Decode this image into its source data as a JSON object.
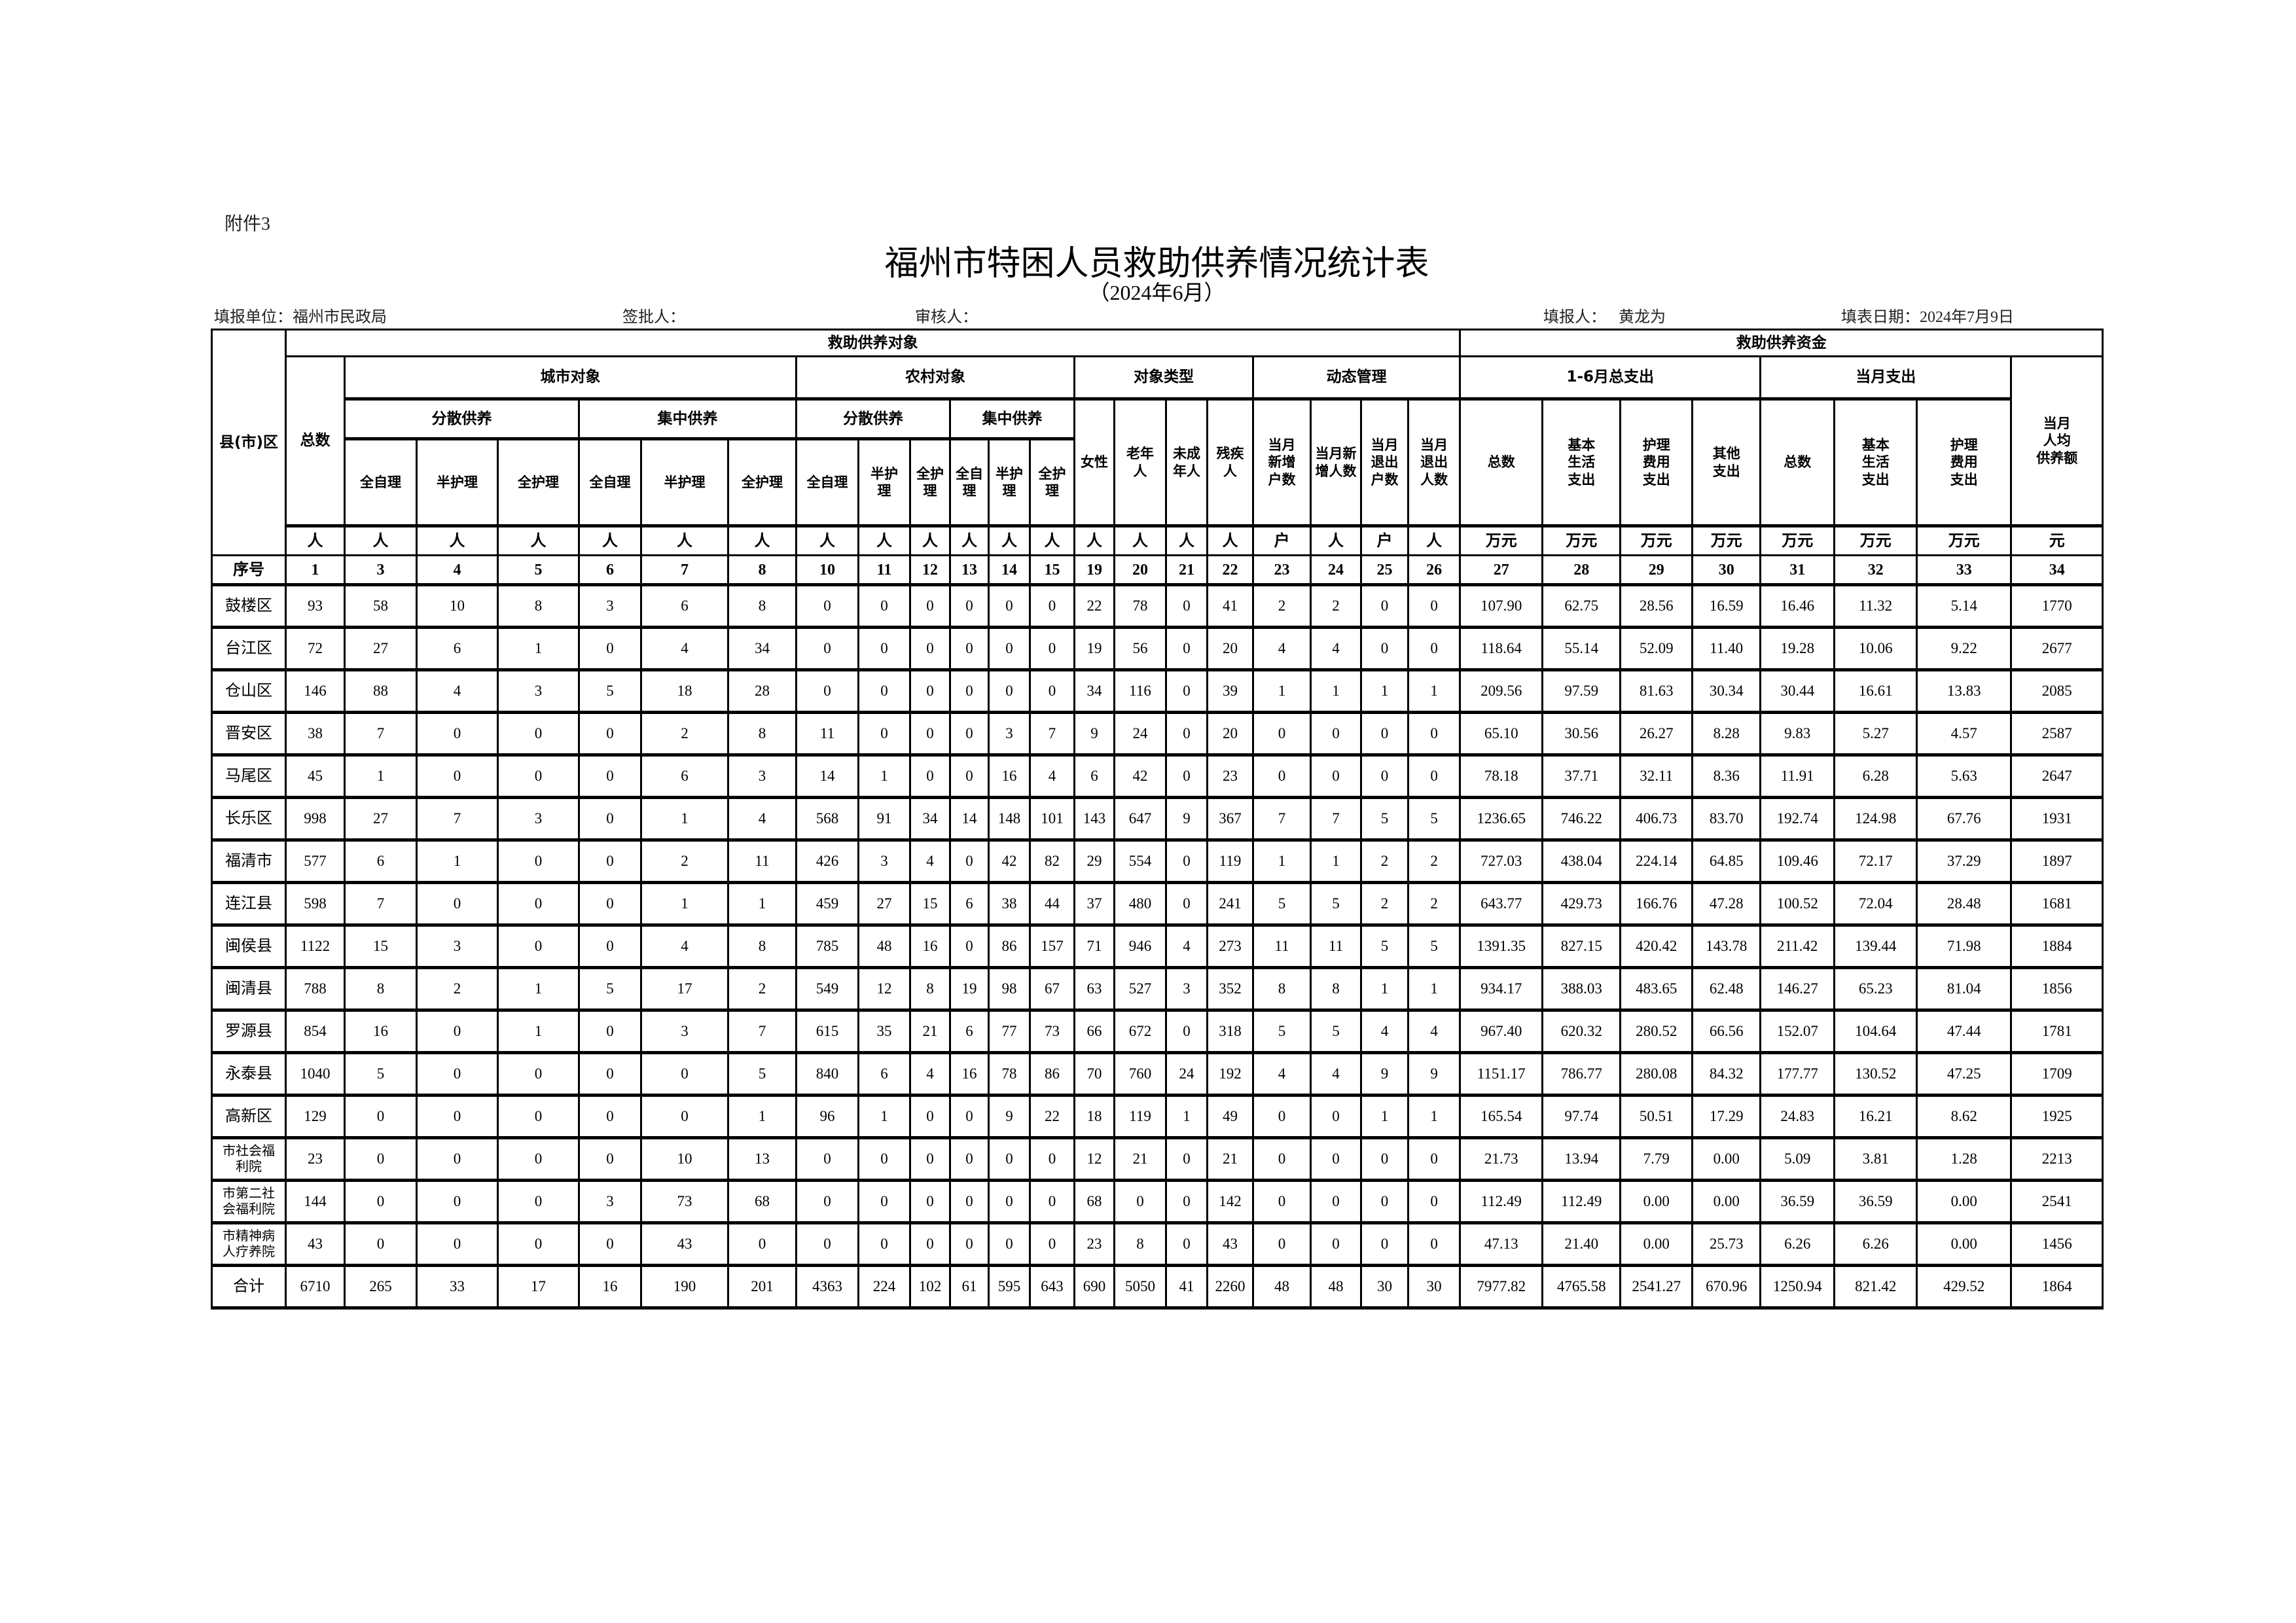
{
  "attachment_label": "附件3",
  "title": "福州市特困人员救助供养情况统计表",
  "subtitle": "（2024年6月）",
  "info": {
    "unit": "填报单位：福州市民政局",
    "approver": "签批人：",
    "reviewer": "审核人：",
    "filler_label": "填报人：",
    "filler_name": "黄龙为",
    "date": "填表日期：2024年7月9日"
  },
  "header": {
    "region": "县(市)区",
    "objects": "救助供养对象",
    "funds": "救助供养资金",
    "total": "总数",
    "urban": "城市对象",
    "rural": "农村对象",
    "type": "对象类型",
    "dynamic": "动态管理",
    "spend_1_6": "1-6月总支出",
    "spend_month": "当月支出",
    "per_capita": "当月\n人均\n供养额",
    "dispersed": "分散供养",
    "centralized": "集中供养",
    "female": "女性",
    "elderly": "老年\n人",
    "minor": "未成\n年人",
    "disabled": "残疾\n人",
    "new_households": "当月\n新增\n户数",
    "new_persons": "当月新\n增人数",
    "exit_households": "当月\n退出\n户数",
    "exit_persons": "当月\n退出\n人数",
    "f_total": "总数",
    "f_basic": "基本\n生活\n支出",
    "f_care": "护理\n费用\n支出",
    "f_other": "其他\n支出",
    "m_total": "总数",
    "m_basic": "基本\n生活\n支出",
    "m_care": "护理\n费用\n支出",
    "leaf": [
      "全自理",
      "半护理",
      "全护理",
      "全自理",
      "半护理",
      "全护理",
      "全自理",
      "半护\n理",
      "全护\n理",
      "全自\n理",
      "半护\n理",
      "全护\n理"
    ],
    "units": [
      "人",
      "人",
      "人",
      "人",
      "人",
      "人",
      "人",
      "人",
      "人",
      "人",
      "人",
      "人",
      "人",
      "人",
      "人",
      "人",
      "人",
      "户",
      "人",
      "户",
      "人",
      "万元",
      "万元",
      "万元",
      "万元",
      "万元",
      "万元",
      "万元",
      "元"
    ],
    "seq_label": "序号",
    "seq": [
      "1",
      "3",
      "4",
      "5",
      "6",
      "7",
      "8",
      "10",
      "11",
      "12",
      "13",
      "14",
      "15",
      "19",
      "20",
      "21",
      "22",
      "23",
      "24",
      "25",
      "26",
      "27",
      "28",
      "29",
      "30",
      "31",
      "32",
      "33",
      "34"
    ]
  },
  "rows": [
    {
      "name": "鼓楼区",
      "values": [
        "93",
        "58",
        "10",
        "8",
        "3",
        "6",
        "8",
        "0",
        "0",
        "0",
        "0",
        "0",
        "0",
        "22",
        "78",
        "0",
        "41",
        "2",
        "2",
        "0",
        "0",
        "107.90",
        "62.75",
        "28.56",
        "16.59",
        "16.46",
        "11.32",
        "5.14",
        "1770"
      ]
    },
    {
      "name": "台江区",
      "values": [
        "72",
        "27",
        "6",
        "1",
        "0",
        "4",
        "34",
        "0",
        "0",
        "0",
        "0",
        "0",
        "0",
        "19",
        "56",
        "0",
        "20",
        "4",
        "4",
        "0",
        "0",
        "118.64",
        "55.14",
        "52.09",
        "11.40",
        "19.28",
        "10.06",
        "9.22",
        "2677"
      ]
    },
    {
      "name": "仓山区",
      "values": [
        "146",
        "88",
        "4",
        "3",
        "5",
        "18",
        "28",
        "0",
        "0",
        "0",
        "0",
        "0",
        "0",
        "34",
        "116",
        "0",
        "39",
        "1",
        "1",
        "1",
        "1",
        "209.56",
        "97.59",
        "81.63",
        "30.34",
        "30.44",
        "16.61",
        "13.83",
        "2085"
      ]
    },
    {
      "name": "晋安区",
      "values": [
        "38",
        "7",
        "0",
        "0",
        "0",
        "2",
        "8",
        "11",
        "0",
        "0",
        "0",
        "3",
        "7",
        "9",
        "24",
        "0",
        "20",
        "0",
        "0",
        "0",
        "0",
        "65.10",
        "30.56",
        "26.27",
        "8.28",
        "9.83",
        "5.27",
        "4.57",
        "2587"
      ]
    },
    {
      "name": "马尾区",
      "values": [
        "45",
        "1",
        "0",
        "0",
        "0",
        "6",
        "3",
        "14",
        "1",
        "0",
        "0",
        "16",
        "4",
        "6",
        "42",
        "0",
        "23",
        "0",
        "0",
        "0",
        "0",
        "78.18",
        "37.71",
        "32.11",
        "8.36",
        "11.91",
        "6.28",
        "5.63",
        "2647"
      ]
    },
    {
      "name": "长乐区",
      "values": [
        "998",
        "27",
        "7",
        "3",
        "0",
        "1",
        "4",
        "568",
        "91",
        "34",
        "14",
        "148",
        "101",
        "143",
        "647",
        "9",
        "367",
        "7",
        "7",
        "5",
        "5",
        "1236.65",
        "746.22",
        "406.73",
        "83.70",
        "192.74",
        "124.98",
        "67.76",
        "1931"
      ]
    },
    {
      "name": "福清市",
      "values": [
        "577",
        "6",
        "1",
        "0",
        "0",
        "2",
        "11",
        "426",
        "3",
        "4",
        "0",
        "42",
        "82",
        "29",
        "554",
        "0",
        "119",
        "1",
        "1",
        "2",
        "2",
        "727.03",
        "438.04",
        "224.14",
        "64.85",
        "109.46",
        "72.17",
        "37.29",
        "1897"
      ]
    },
    {
      "name": "连江县",
      "values": [
        "598",
        "7",
        "0",
        "0",
        "0",
        "1",
        "1",
        "459",
        "27",
        "15",
        "6",
        "38",
        "44",
        "37",
        "480",
        "0",
        "241",
        "5",
        "5",
        "2",
        "2",
        "643.77",
        "429.73",
        "166.76",
        "47.28",
        "100.52",
        "72.04",
        "28.48",
        "1681"
      ]
    },
    {
      "name": "闽侯县",
      "values": [
        "1122",
        "15",
        "3",
        "0",
        "0",
        "4",
        "8",
        "785",
        "48",
        "16",
        "0",
        "86",
        "157",
        "71",
        "946",
        "4",
        "273",
        "11",
        "11",
        "5",
        "5",
        "1391.35",
        "827.15",
        "420.42",
        "143.78",
        "211.42",
        "139.44",
        "71.98",
        "1884"
      ]
    },
    {
      "name": "闽清县",
      "values": [
        "788",
        "8",
        "2",
        "1",
        "5",
        "17",
        "2",
        "549",
        "12",
        "8",
        "19",
        "98",
        "67",
        "63",
        "527",
        "3",
        "352",
        "8",
        "8",
        "1",
        "1",
        "934.17",
        "388.03",
        "483.65",
        "62.48",
        "146.27",
        "65.23",
        "81.04",
        "1856"
      ]
    },
    {
      "name": "罗源县",
      "values": [
        "854",
        "16",
        "0",
        "1",
        "0",
        "3",
        "7",
        "615",
        "35",
        "21",
        "6",
        "77",
        "73",
        "66",
        "672",
        "0",
        "318",
        "5",
        "5",
        "4",
        "4",
        "967.40",
        "620.32",
        "280.52",
        "66.56",
        "152.07",
        "104.64",
        "47.44",
        "1781"
      ]
    },
    {
      "name": "永泰县",
      "values": [
        "1040",
        "5",
        "0",
        "0",
        "0",
        "0",
        "5",
        "840",
        "6",
        "4",
        "16",
        "78",
        "86",
        "70",
        "760",
        "24",
        "192",
        "4",
        "4",
        "9",
        "9",
        "1151.17",
        "786.77",
        "280.08",
        "84.32",
        "177.77",
        "130.52",
        "47.25",
        "1709"
      ]
    },
    {
      "name": "高新区",
      "values": [
        "129",
        "0",
        "0",
        "0",
        "0",
        "0",
        "1",
        "96",
        "1",
        "0",
        "0",
        "9",
        "22",
        "18",
        "119",
        "1",
        "49",
        "0",
        "0",
        "1",
        "1",
        "165.54",
        "97.74",
        "50.51",
        "17.29",
        "24.83",
        "16.21",
        "8.62",
        "1925"
      ]
    },
    {
      "name": "市社会福\n利院",
      "values": [
        "23",
        "0",
        "0",
        "0",
        "0",
        "10",
        "13",
        "0",
        "0",
        "0",
        "0",
        "0",
        "0",
        "12",
        "21",
        "0",
        "21",
        "0",
        "0",
        "0",
        "0",
        "21.73",
        "13.94",
        "7.79",
        "0.00",
        "5.09",
        "3.81",
        "1.28",
        "2213"
      ]
    },
    {
      "name": "市第二社\n会福利院",
      "values": [
        "144",
        "0",
        "0",
        "0",
        "3",
        "73",
        "68",
        "0",
        "0",
        "0",
        "0",
        "0",
        "0",
        "68",
        "0",
        "0",
        "142",
        "0",
        "0",
        "0",
        "0",
        "112.49",
        "112.49",
        "0.00",
        "0.00",
        "36.59",
        "36.59",
        "0.00",
        "2541"
      ]
    },
    {
      "name": "市精神病\n人疗养院",
      "values": [
        "43",
        "0",
        "0",
        "0",
        "0",
        "43",
        "0",
        "0",
        "0",
        "0",
        "0",
        "0",
        "0",
        "23",
        "8",
        "0",
        "43",
        "0",
        "0",
        "0",
        "0",
        "47.13",
        "21.40",
        "0.00",
        "25.73",
        "6.26",
        "6.26",
        "0.00",
        "1456"
      ]
    }
  ],
  "total_row": {
    "name": "合计",
    "values": [
      "6710",
      "265",
      "33",
      "17",
      "16",
      "190",
      "201",
      "4363",
      "224",
      "102",
      "61",
      "595",
      "643",
      "690",
      "5050",
      "41",
      "2260",
      "48",
      "48",
      "30",
      "30",
      "7977.82",
      "4765.58",
      "2541.27",
      "670.96",
      "1250.94",
      "821.42",
      "429.52",
      "1864"
    ]
  }
}
